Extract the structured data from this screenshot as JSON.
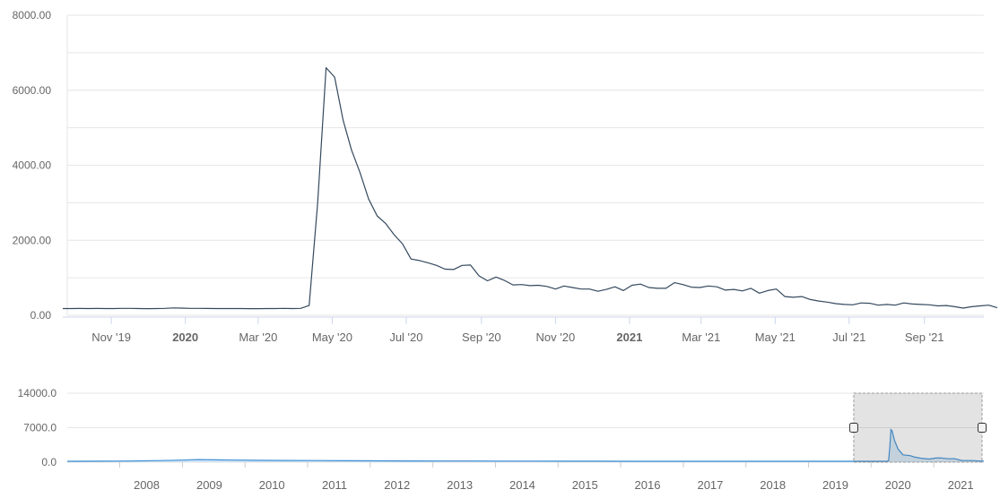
{
  "chart_data": [
    {
      "type": "line",
      "title": "",
      "xlabel": "",
      "ylabel": "",
      "ylim": [
        0,
        8000
      ],
      "xlim": [
        "2019-09-22",
        "2021-10-20"
      ],
      "grid": true,
      "y_ticks": [
        {
          "value": 0,
          "label": "0.00"
        },
        {
          "value": 2000,
          "label": "2000.00"
        },
        {
          "value": 4000,
          "label": "4000.00"
        },
        {
          "value": 6000,
          "label": "6000.00"
        },
        {
          "value": 8000,
          "label": "8000.00"
        }
      ],
      "x_ticks": [
        {
          "date": "2019-11-01",
          "label": "Nov '19",
          "bold": false
        },
        {
          "date": "2020-01-01",
          "label": "2020",
          "bold": true
        },
        {
          "date": "2020-03-01",
          "label": "Mar '20",
          "bold": false
        },
        {
          "date": "2020-05-01",
          "label": "May '20",
          "bold": false
        },
        {
          "date": "2020-07-01",
          "label": "Jul '20",
          "bold": false
        },
        {
          "date": "2020-09-01",
          "label": "Sep '20",
          "bold": false
        },
        {
          "date": "2020-11-01",
          "label": "Nov '20",
          "bold": false
        },
        {
          "date": "2021-01-01",
          "label": "2021",
          "bold": true
        },
        {
          "date": "2021-03-01",
          "label": "Mar '21",
          "bold": false
        },
        {
          "date": "2021-05-01",
          "label": "May '21",
          "bold": false
        },
        {
          "date": "2021-07-01",
          "label": "Jul '21",
          "bold": false
        },
        {
          "date": "2021-09-01",
          "label": "Sep '21",
          "bold": false
        }
      ],
      "series": [
        {
          "color": "#34495e",
          "points": [
            [
              "2019-09-22",
              180
            ],
            [
              "2019-09-29",
              180
            ],
            [
              "2019-10-06",
              182
            ],
            [
              "2019-10-13",
              178
            ],
            [
              "2019-10-20",
              182
            ],
            [
              "2019-10-27",
              179
            ],
            [
              "2019-11-03",
              180
            ],
            [
              "2019-11-10",
              183
            ],
            [
              "2019-11-17",
              185
            ],
            [
              "2019-11-24",
              180
            ],
            [
              "2019-12-01",
              176
            ],
            [
              "2019-12-08",
              178
            ],
            [
              "2019-12-15",
              185
            ],
            [
              "2019-12-22",
              195
            ],
            [
              "2019-12-29",
              190
            ],
            [
              "2020-01-05",
              185
            ],
            [
              "2020-01-12",
              183
            ],
            [
              "2020-01-19",
              182
            ],
            [
              "2020-01-26",
              180
            ],
            [
              "2020-02-02",
              178
            ],
            [
              "2020-02-09",
              180
            ],
            [
              "2020-02-16",
              178
            ],
            [
              "2020-02-23",
              177
            ],
            [
              "2020-03-01",
              176
            ],
            [
              "2020-03-08",
              178
            ],
            [
              "2020-03-15",
              180
            ],
            [
              "2020-03-22",
              183
            ],
            [
              "2020-03-29",
              180
            ],
            [
              "2020-04-05",
              185
            ],
            [
              "2020-04-12",
              260
            ],
            [
              "2020-04-19",
              3000
            ],
            [
              "2020-04-26",
              6600
            ],
            [
              "2020-05-03",
              6350
            ],
            [
              "2020-05-10",
              5200
            ],
            [
              "2020-05-17",
              4400
            ],
            [
              "2020-05-24",
              3800
            ],
            [
              "2020-05-31",
              3100
            ],
            [
              "2020-06-07",
              2650
            ],
            [
              "2020-06-14",
              2450
            ],
            [
              "2020-06-21",
              2150
            ],
            [
              "2020-06-28",
              1900
            ],
            [
              "2020-07-05",
              1500
            ],
            [
              "2020-07-12",
              1460
            ],
            [
              "2020-07-19",
              1400
            ],
            [
              "2020-07-26",
              1330
            ],
            [
              "2020-08-02",
              1230
            ],
            [
              "2020-08-09",
              1220
            ],
            [
              "2020-08-16",
              1330
            ],
            [
              "2020-08-23",
              1340
            ],
            [
              "2020-08-30",
              1050
            ],
            [
              "2020-09-06",
              920
            ],
            [
              "2020-09-13",
              1020
            ],
            [
              "2020-09-20",
              930
            ],
            [
              "2020-09-27",
              810
            ],
            [
              "2020-10-04",
              820
            ],
            [
              "2020-10-11",
              790
            ],
            [
              "2020-10-18",
              800
            ],
            [
              "2020-10-25",
              770
            ],
            [
              "2020-11-01",
              700
            ],
            [
              "2020-11-08",
              780
            ],
            [
              "2020-11-15",
              740
            ],
            [
              "2020-11-22",
              700
            ],
            [
              "2020-11-29",
              700
            ],
            [
              "2020-12-06",
              640
            ],
            [
              "2020-12-13",
              690
            ],
            [
              "2020-12-20",
              760
            ],
            [
              "2020-12-27",
              660
            ],
            [
              "2021-01-03",
              800
            ],
            [
              "2021-01-10",
              830
            ],
            [
              "2021-01-17",
              740
            ],
            [
              "2021-01-24",
              720
            ],
            [
              "2021-01-31",
              720
            ],
            [
              "2021-02-07",
              870
            ],
            [
              "2021-02-14",
              820
            ],
            [
              "2021-02-21",
              750
            ],
            [
              "2021-02-28",
              740
            ],
            [
              "2021-03-07",
              780
            ],
            [
              "2021-03-14",
              760
            ],
            [
              "2021-03-21",
              670
            ],
            [
              "2021-03-28",
              690
            ],
            [
              "2021-04-04",
              650
            ],
            [
              "2021-04-11",
              720
            ],
            [
              "2021-04-18",
              590
            ],
            [
              "2021-04-25",
              660
            ],
            [
              "2021-05-02",
              700
            ],
            [
              "2021-05-09",
              500
            ],
            [
              "2021-05-16",
              480
            ],
            [
              "2021-05-23",
              500
            ],
            [
              "2021-05-30",
              420
            ],
            [
              "2021-06-06",
              380
            ],
            [
              "2021-06-13",
              350
            ],
            [
              "2021-06-20",
              310
            ],
            [
              "2021-06-27",
              290
            ],
            [
              "2021-07-04",
              280
            ],
            [
              "2021-07-11",
              330
            ],
            [
              "2021-07-18",
              320
            ],
            [
              "2021-07-25",
              270
            ],
            [
              "2021-08-01",
              290
            ],
            [
              "2021-08-08",
              270
            ],
            [
              "2021-08-15",
              330
            ],
            [
              "2021-08-22",
              300
            ],
            [
              "2021-08-29",
              290
            ],
            [
              "2021-09-05",
              280
            ],
            [
              "2021-09-12",
              250
            ],
            [
              "2021-09-19",
              260
            ],
            [
              "2021-09-26",
              230
            ],
            [
              "2021-10-03",
              190
            ],
            [
              "2021-10-10",
              230
            ],
            [
              "2021-10-17",
              250
            ],
            [
              "2021-10-24",
              270
            ],
            [
              "2021-10-31",
              200
            ]
          ]
        }
      ]
    },
    {
      "type": "area",
      "title": "",
      "xlabel": "",
      "ylabel": "",
      "ylim": [
        0,
        14000
      ],
      "xlim": [
        "2007-03-01",
        "2021-10-20"
      ],
      "grid": true,
      "y_ticks": [
        {
          "value": 0,
          "label": "0.0"
        },
        {
          "value": 7000,
          "label": "7000.0"
        },
        {
          "value": 14000,
          "label": "14000.0"
        }
      ],
      "x_ticks": [
        {
          "date": "2008-01-01",
          "label": "2008"
        },
        {
          "date": "2009-01-01",
          "label": "2009"
        },
        {
          "date": "2010-01-01",
          "label": "2010"
        },
        {
          "date": "2011-01-01",
          "label": "2011"
        },
        {
          "date": "2012-01-01",
          "label": "2012"
        },
        {
          "date": "2013-01-01",
          "label": "2013"
        },
        {
          "date": "2014-01-01",
          "label": "2014"
        },
        {
          "date": "2015-01-01",
          "label": "2015"
        },
        {
          "date": "2016-01-01",
          "label": "2016"
        },
        {
          "date": "2017-01-01",
          "label": "2017"
        },
        {
          "date": "2018-01-01",
          "label": "2018"
        },
        {
          "date": "2019-01-01",
          "label": "2019"
        },
        {
          "date": "2020-01-01",
          "label": "2020"
        },
        {
          "date": "2021-01-01",
          "label": "2021"
        }
      ],
      "selected_range": [
        "2019-09-22",
        "2021-10-20"
      ],
      "series": [
        {
          "color": "#3c8fd6",
          "points": [
            [
              "2007-03-01",
              180
            ],
            [
              "2007-09-01",
              200
            ],
            [
              "2008-03-01",
              240
            ],
            [
              "2008-09-01",
              320
            ],
            [
              "2009-01-01",
              420
            ],
            [
              "2009-04-01",
              520
            ],
            [
              "2009-09-01",
              460
            ],
            [
              "2010-03-01",
              380
            ],
            [
              "2010-09-01",
              340
            ],
            [
              "2011-03-01",
              320
            ],
            [
              "2011-09-01",
              300
            ],
            [
              "2012-03-01",
              270
            ],
            [
              "2012-09-01",
              250
            ],
            [
              "2013-03-01",
              240
            ],
            [
              "2013-09-01",
              230
            ],
            [
              "2014-03-01",
              220
            ],
            [
              "2014-09-01",
              210
            ],
            [
              "2015-03-01",
              200
            ],
            [
              "2015-09-01",
              195
            ],
            [
              "2016-03-01",
              190
            ],
            [
              "2016-09-01",
              185
            ],
            [
              "2017-03-01",
              180
            ],
            [
              "2017-09-01",
              180
            ],
            [
              "2018-03-01",
              175
            ],
            [
              "2018-09-01",
              178
            ],
            [
              "2019-03-01",
              180
            ],
            [
              "2019-09-22",
              180
            ],
            [
              "2020-03-29",
              180
            ],
            [
              "2020-04-12",
              260
            ],
            [
              "2020-04-19",
              3000
            ],
            [
              "2020-04-26",
              6600
            ],
            [
              "2020-05-03",
              6350
            ],
            [
              "2020-05-17",
              4400
            ],
            [
              "2020-06-07",
              2650
            ],
            [
              "2020-07-05",
              1500
            ],
            [
              "2020-08-16",
              1330
            ],
            [
              "2020-09-13",
              1020
            ],
            [
              "2020-10-18",
              800
            ],
            [
              "2020-12-06",
              640
            ],
            [
              "2021-01-10",
              830
            ],
            [
              "2021-02-07",
              870
            ],
            [
              "2021-03-28",
              690
            ],
            [
              "2021-05-02",
              700
            ],
            [
              "2021-06-13",
              350
            ],
            [
              "2021-08-15",
              330
            ],
            [
              "2021-09-26",
              230
            ],
            [
              "2021-10-20",
              230
            ]
          ]
        }
      ]
    }
  ]
}
